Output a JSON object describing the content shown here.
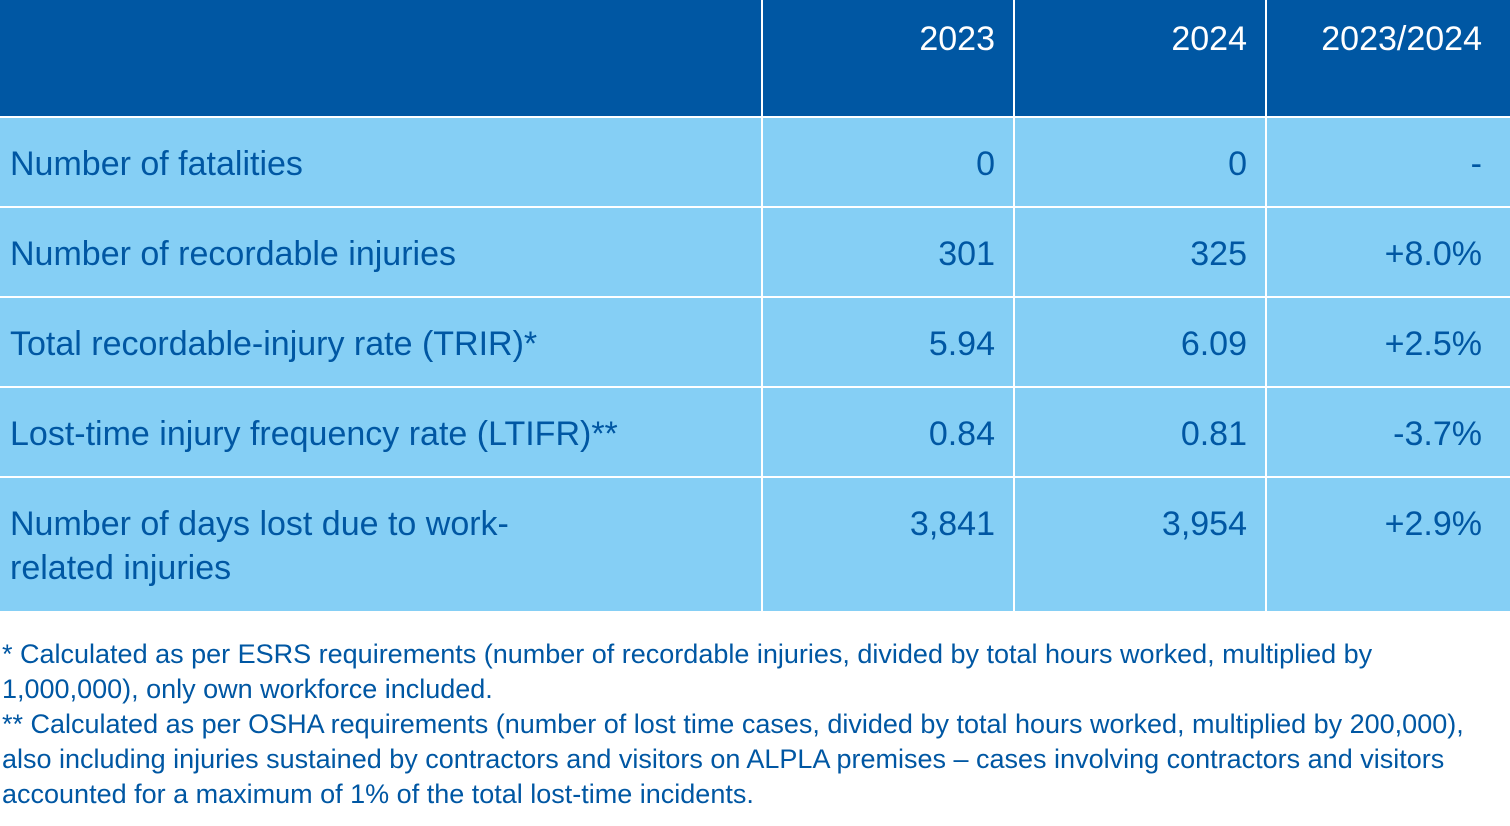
{
  "table": {
    "headers": [
      "",
      "2023",
      "2024",
      "2023/2024"
    ],
    "rows": [
      {
        "label": "Number of fatalities",
        "y2023": "0",
        "y2024": "0",
        "change": "-"
      },
      {
        "label": "Number of recordable injuries",
        "y2023": "301",
        "y2024": "325",
        "change": "+8.0%"
      },
      {
        "label": "Total recordable-injury rate (TRIR)*",
        "y2023": "5.94",
        "y2024": "6.09",
        "change": "+2.5%"
      },
      {
        "label": "Lost-time injury frequency rate (LTIFR)**",
        "y2023": "0.84",
        "y2024": "0.81",
        "change": "-3.7%"
      },
      {
        "label": "Number of days lost due to work-related injuries",
        "y2023": "3,841",
        "y2024": "3,954",
        "change": "+2.9%"
      }
    ]
  },
  "footnotes": {
    "note1": "* Calculated as per ESRS requirements (number of recordable injuries, divided by total hours worked, multiplied by 1,000,000), only own workforce included.",
    "note2": "** Calculated as per OSHA requirements (number of lost time cases, divided by total hours worked, multiplied by 200,000), also including injuries sustained by contractors and visitors on ALPLA premises – cases involving contractors and visitors accounted for a maximum of 1% of the total lost-time incidents."
  },
  "colors": {
    "header_bg": "#0057a3",
    "row_bg": "#85cff5",
    "text": "#0057a3"
  }
}
